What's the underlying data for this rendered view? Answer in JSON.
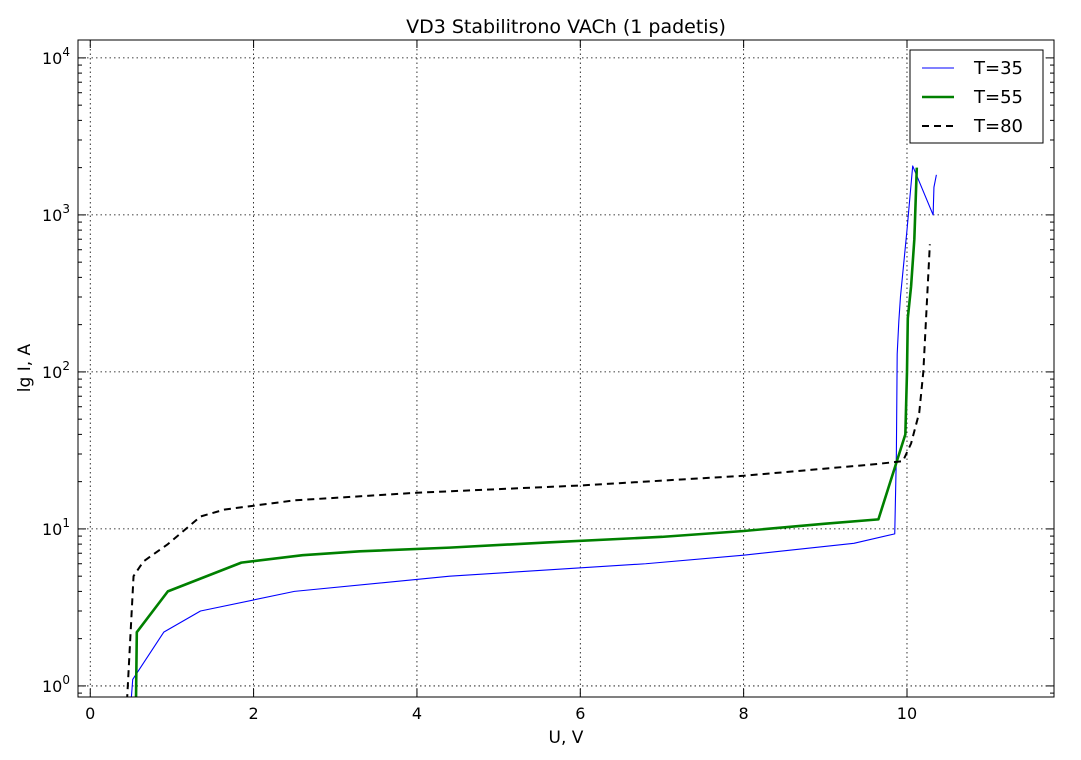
{
  "chart_data": {
    "type": "line",
    "title": "VD3 Stabilitrono VACh (1 padetis)",
    "xlabel": "U, V",
    "ylabel": "lg I, A",
    "xlim": [
      -0.15,
      11.8
    ],
    "ylim": [
      0.85,
      13000
    ],
    "yscale": "log",
    "grid": true,
    "legend_position": "top-right",
    "x_ticks": [
      0,
      2,
      4,
      6,
      8,
      10
    ],
    "x_tick_labels": [
      "0",
      "2",
      "4",
      "6",
      "8",
      "10"
    ],
    "y_ticks": [
      1,
      10,
      100,
      1000,
      10000
    ],
    "y_tick_labels": [
      {
        "base": "10",
        "exp": "0"
      },
      {
        "base": "10",
        "exp": "1"
      },
      {
        "base": "10",
        "exp": "2"
      },
      {
        "base": "10",
        "exp": "3"
      },
      {
        "base": "10",
        "exp": "4"
      }
    ],
    "series": [
      {
        "name": "T=35",
        "color": "#0000ff",
        "line_style": "solid",
        "line_width": "thin",
        "x": [
          0.5,
          0.52,
          0.9,
          1.35,
          2.5,
          4.4,
          6.8,
          8.0,
          9.35,
          9.85,
          9.87,
          9.88,
          9.9,
          9.92,
          10.0,
          10.07,
          10.32,
          10.33,
          10.36
        ],
        "y": [
          0.8,
          1.1,
          2.2,
          3.0,
          4.0,
          5.0,
          6.0,
          6.8,
          8.1,
          9.3,
          30,
          130,
          210,
          300,
          800,
          2050,
          1000,
          1500,
          1800
        ]
      },
      {
        "name": "T=55",
        "color": "#008000",
        "line_style": "solid",
        "line_width": "thick",
        "x": [
          0.56,
          0.57,
          0.95,
          1.85,
          2.6,
          3.3,
          4.4,
          5.6,
          7.0,
          8.0,
          9.0,
          9.65,
          9.98,
          10.0,
          10.01,
          10.05,
          10.09,
          10.12
        ],
        "y": [
          0.8,
          2.2,
          4.0,
          6.1,
          6.8,
          7.2,
          7.6,
          8.2,
          8.9,
          9.7,
          10.8,
          11.5,
          40,
          100,
          220,
          350,
          700,
          2000
        ]
      },
      {
        "name": "T=80",
        "color": "#000000",
        "line_style": "dashed",
        "line_width": "medium",
        "x": [
          0.45,
          0.49,
          0.53,
          0.65,
          0.95,
          1.35,
          1.65,
          2.5,
          4.0,
          6.0,
          8.0,
          9.6,
          9.95,
          10.05,
          10.15,
          10.2,
          10.28
        ],
        "y": [
          0.8,
          2.0,
          5.0,
          6.2,
          8.0,
          12.0,
          13.3,
          15.2,
          17.0,
          18.9,
          21.8,
          25.8,
          27,
          35,
          55,
          100,
          650
        ]
      }
    ]
  }
}
